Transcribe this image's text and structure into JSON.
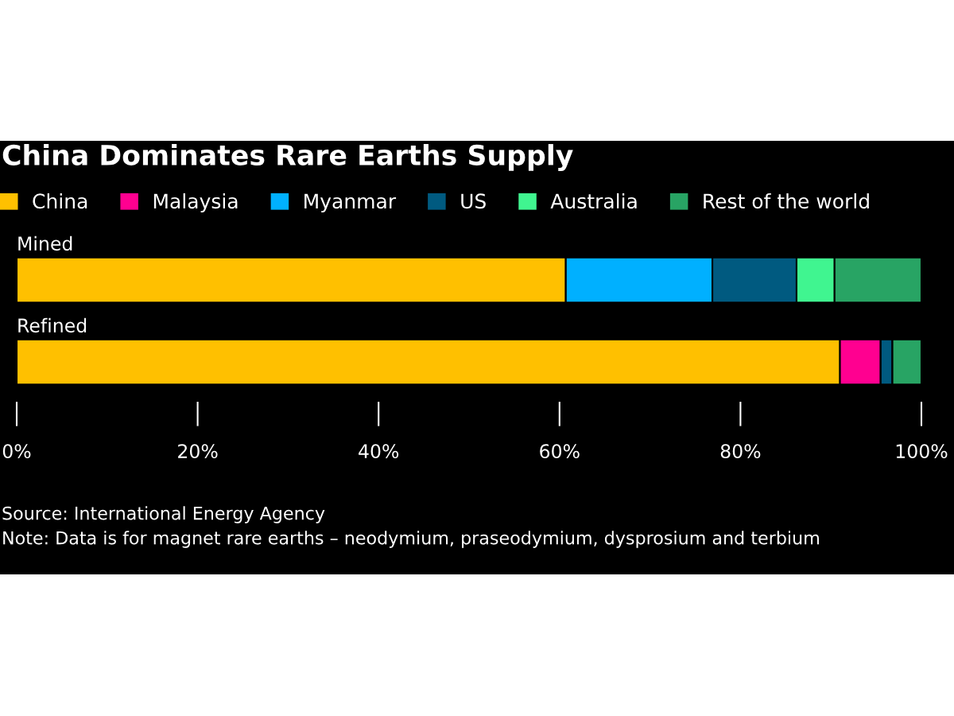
{
  "chart_data": {
    "type": "bar",
    "orientation": "horizontal",
    "stacked": true,
    "title": "China Dominates Rare Earths Supply",
    "categories": [
      "Mined",
      "Refined"
    ],
    "series": [
      {
        "name": "China",
        "color": "#ffc000",
        "values": [
          60.7,
          91.0
        ]
      },
      {
        "name": "Malaysia",
        "color": "#ff0090",
        "values": [
          0,
          4.5
        ]
      },
      {
        "name": "Myanmar",
        "color": "#00b0ff",
        "values": [
          16.2,
          0
        ]
      },
      {
        "name": "US",
        "color": "#005a80",
        "values": [
          9.3,
          1.3
        ]
      },
      {
        "name": "Australia",
        "color": "#40f590",
        "values": [
          4.2,
          0
        ]
      },
      {
        "name": "Rest of the world",
        "color": "#28a464",
        "values": [
          9.6,
          3.2
        ]
      }
    ],
    "xlim": [
      0,
      100
    ],
    "xticks": [
      {
        "value": 0,
        "label": "0%"
      },
      {
        "value": 20,
        "label": "20%"
      },
      {
        "value": 40,
        "label": "40%"
      },
      {
        "value": 60,
        "label": "60%"
      },
      {
        "value": 80,
        "label": "80%"
      },
      {
        "value": 100,
        "label": "100%"
      }
    ],
    "legend": "top left",
    "grid": false,
    "annotations": [
      "Source: International Energy Agency",
      "Note: Data is for magnet rare earths – neodymium, praseodymium, dysprosium and terbium"
    ]
  }
}
